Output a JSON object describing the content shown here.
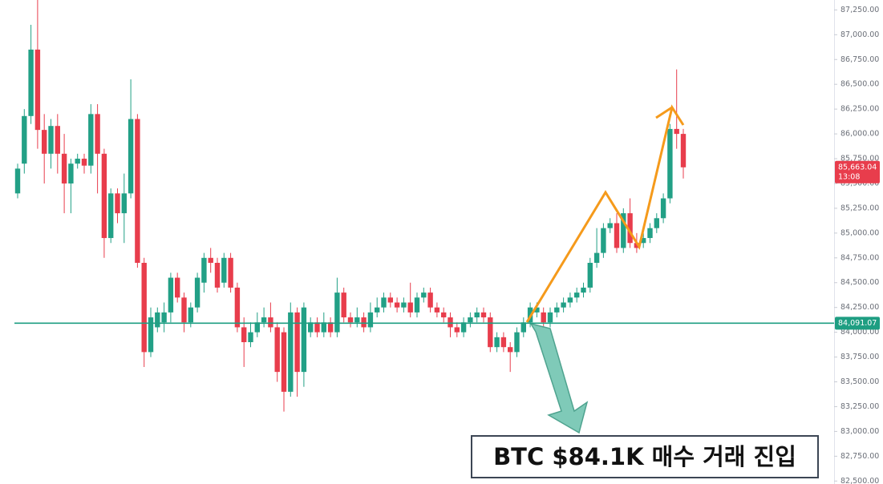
{
  "chart_data": {
    "type": "candlestick",
    "open": [
      85400,
      85700,
      86180,
      86850,
      86040,
      85800,
      86080,
      85800,
      85500,
      85700,
      85750,
      85680,
      86200,
      85800,
      84950,
      85400,
      85200,
      85400,
      86150,
      84700,
      83800,
      84050,
      84100,
      84200,
      84550,
      84350,
      84100,
      84250,
      84500,
      84750,
      84700,
      84500,
      84750,
      84450,
      84050,
      83900,
      84000,
      84100,
      84150,
      84050,
      84000,
      83400,
      84200,
      83600,
      84000,
      84100,
      84000,
      84100,
      84000,
      84400,
      84150,
      84100,
      84150,
      84050,
      84200,
      84250,
      84350,
      84300,
      84250,
      84300,
      84200,
      84350,
      84400,
      84250,
      84200,
      84150,
      84050,
      84000,
      84100,
      84150,
      84200,
      84150,
      83850,
      83950,
      83850,
      83800,
      84000,
      84100,
      84200,
      84200,
      84100,
      84200,
      84250,
      84300,
      84350,
      84400,
      84450,
      84700,
      84800,
      85050,
      85100,
      84850,
      85200,
      84900,
      84900,
      84950,
      85050,
      85150,
      85350,
      86050,
      86000
    ],
    "high": [
      85700,
      86250,
      87100,
      87350,
      86200,
      86150,
      86200,
      86000,
      85750,
      85800,
      85800,
      86300,
      86300,
      85850,
      85450,
      85450,
      85600,
      86550,
      86200,
      84750,
      84250,
      84250,
      84300,
      84600,
      84600,
      84400,
      84300,
      84600,
      84800,
      84850,
      84750,
      84800,
      84800,
      84500,
      84150,
      84100,
      84200,
      84250,
      84300,
      84100,
      84050,
      84300,
      84250,
      84300,
      84150,
      84150,
      84200,
      84150,
      84550,
      84450,
      84200,
      84250,
      84200,
      84300,
      84350,
      84400,
      84400,
      84350,
      84350,
      84500,
      84400,
      84450,
      84450,
      84300,
      84250,
      84200,
      84100,
      84150,
      84200,
      84250,
      84250,
      84200,
      84000,
      84000,
      83900,
      84050,
      84150,
      84300,
      84300,
      84250,
      84250,
      84300,
      84350,
      84400,
      84450,
      84500,
      84750,
      85050,
      85100,
      85150,
      85200,
      85250,
      85350,
      85000,
      85000,
      85100,
      85200,
      85400,
      86100,
      86650,
      86050
    ],
    "low": [
      85350,
      85600,
      86100,
      85850,
      85500,
      85650,
      85600,
      85200,
      85200,
      85650,
      85600,
      85600,
      85400,
      84750,
      84900,
      85100,
      84900,
      85350,
      84650,
      83650,
      83750,
      84000,
      84000,
      84100,
      84300,
      84000,
      84050,
      84200,
      84400,
      84600,
      84400,
      84450,
      84400,
      84000,
      83650,
      83850,
      83950,
      84050,
      84000,
      83500,
      83200,
      83350,
      83350,
      83450,
      83950,
      83950,
      83950,
      83950,
      83950,
      84100,
      84050,
      84050,
      84000,
      84000,
      84150,
      84200,
      84250,
      84200,
      84200,
      84150,
      84150,
      84300,
      84200,
      84150,
      84100,
      83950,
      83950,
      83950,
      84050,
      84100,
      84100,
      83800,
      83800,
      83800,
      83600,
      83750,
      83950,
      84050,
      84150,
      84050,
      84050,
      84150,
      84200,
      84250,
      84300,
      84350,
      84400,
      84650,
      84750,
      85000,
      84800,
      84800,
      84850,
      84800,
      84850,
      84900,
      85000,
      85100,
      85300,
      85850,
      85550
    ],
    "close": [
      85650,
      86180,
      86850,
      86040,
      85800,
      86080,
      85800,
      85500,
      85700,
      85750,
      85680,
      86200,
      85800,
      84950,
      85400,
      85200,
      85400,
      86150,
      84700,
      83800,
      84150,
      84200,
      84200,
      84550,
      84350,
      84100,
      84250,
      84550,
      84750,
      84700,
      84450,
      84750,
      84450,
      84050,
      83900,
      84000,
      84100,
      84150,
      84050,
      83600,
      83400,
      84200,
      83600,
      84250,
      84100,
      84000,
      84100,
      84000,
      84400,
      84150,
      84100,
      84150,
      84050,
      84200,
      84250,
      84350,
      84300,
      84250,
      84300,
      84200,
      84350,
      84400,
      84250,
      84200,
      84150,
      84050,
      84000,
      84100,
      84150,
      84200,
      84150,
      83850,
      83950,
      83850,
      83800,
      84000,
      84100,
      84250,
      84250,
      84100,
      84200,
      84250,
      84300,
      84350,
      84400,
      84450,
      84700,
      84800,
      85050,
      85100,
      84850,
      85200,
      84900,
      84850,
      84950,
      85050,
      85150,
      85350,
      86050,
      86000,
      85663.04
    ],
    "up_color": "#22a086",
    "down_color": "#e83d4c",
    "ylim": [
      82470,
      87350
    ],
    "yticks": [
      {
        "value": 82500,
        "label": "82,500.00"
      },
      {
        "value": 82750,
        "label": "82,750.00"
      },
      {
        "value": 83000,
        "label": "83,000.00"
      },
      {
        "value": 83250,
        "label": "83,250.00"
      },
      {
        "value": 83500,
        "label": "83,500.00"
      },
      {
        "value": 83750,
        "label": "83,750.00"
      },
      {
        "value": 84000,
        "label": "84,000.00"
      },
      {
        "value": 84250,
        "label": "84,250.00"
      },
      {
        "value": 84500,
        "label": "84,500.00"
      },
      {
        "value": 84750,
        "label": "84,750.00"
      },
      {
        "value": 85000,
        "label": "85,000.00"
      },
      {
        "value": 85250,
        "label": "85,250.00"
      },
      {
        "value": 85500,
        "label": "85,500.00"
      },
      {
        "value": 85750,
        "label": "85,750.00"
      },
      {
        "value": 86000,
        "label": "86,000.00"
      },
      {
        "value": 86250,
        "label": "86,250.00"
      },
      {
        "value": 86500,
        "label": "86,500.00"
      },
      {
        "value": 86750,
        "label": "86,750.00"
      },
      {
        "value": 87000,
        "label": "87,000.00"
      },
      {
        "value": 87250,
        "label": "87,250.00"
      }
    ],
    "price_line": {
      "value": 84091.07,
      "label": "84,091.07",
      "color": "#1e9e82"
    },
    "last_price": {
      "value": 85663.04,
      "label": "85,663.04",
      "timer": "13:08",
      "color": "#e83d4c"
    },
    "annotation": "BTC $84.1K 매수 거래 진입"
  }
}
